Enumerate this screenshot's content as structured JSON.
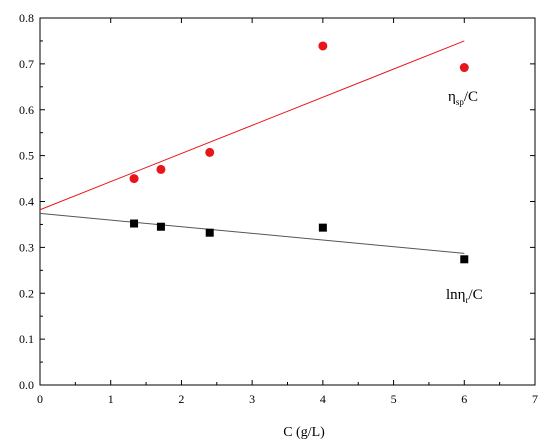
{
  "chart_data": {
    "type": "scatter",
    "xlabel": "C (g/L)",
    "ylabel": "",
    "xlim": [
      0,
      7
    ],
    "ylim": [
      0.0,
      0.8
    ],
    "xticks": [
      "0",
      "1",
      "2",
      "3",
      "4",
      "5",
      "6",
      "7"
    ],
    "yticks": [
      "0.0",
      "0.1",
      "0.2",
      "0.3",
      "0.4",
      "0.5",
      "0.6",
      "0.7",
      "0.8"
    ],
    "grid": false,
    "series": [
      {
        "name": "ηsp/C",
        "label_main": "η",
        "label_sub": "sp",
        "label_tail": "/C",
        "marker": "circle",
        "color": "#e8161b",
        "x": [
          1.33,
          1.71,
          2.4,
          4.0,
          6.0
        ],
        "y": [
          0.45,
          0.47,
          0.507,
          0.739,
          0.692
        ],
        "fit": {
          "x": [
            0,
            6
          ],
          "y": [
            0.382,
            0.75
          ]
        }
      },
      {
        "name": "lnηr/C",
        "label_main": "lnη",
        "label_sub": "r",
        "label_tail": "/C",
        "marker": "square",
        "color": "#000000",
        "x": [
          1.33,
          1.71,
          2.4,
          4.0,
          6.0
        ],
        "y": [
          0.352,
          0.345,
          0.332,
          0.343,
          0.274
        ],
        "fit": {
          "x": [
            0,
            6
          ],
          "y": [
            0.374,
            0.287
          ],
          "color": "#555555"
        }
      }
    ]
  }
}
